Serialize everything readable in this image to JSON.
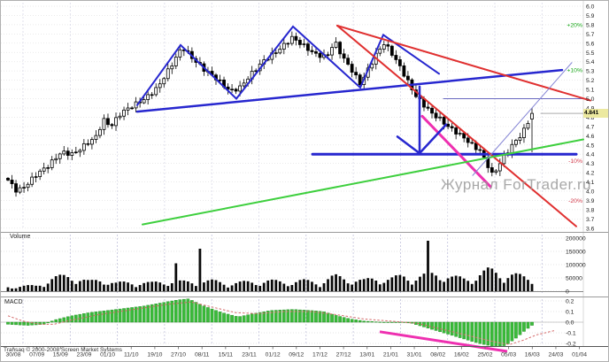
{
  "window": {
    "watermark": "Журнал ForTrader.ru",
    "copyright": "Transaq © 2000-2008 Screen Market Systems"
  },
  "price_panel": {
    "last_price": "4.841"
  },
  "volume_panel": {
    "label": "Volume"
  },
  "macd_panel": {
    "label": "MACD"
  },
  "chart_data": [
    {
      "type": "candlestick",
      "panel": "price",
      "ylim": [
        3.6,
        6.0
      ],
      "ytick_step": 0.1,
      "grid": true,
      "legend_position": "none",
      "x_dates": [
        "30/08",
        "07/09",
        "15/09",
        "23/09",
        "01/10",
        "11/10",
        "19/10",
        "27/10",
        "08/11",
        "15/11",
        "23/11",
        "01/12",
        "09/12",
        "17/12",
        "27/12",
        "13/01",
        "21/01",
        "31/01",
        "08/02",
        "16/02",
        "25/02",
        "05/03",
        "16/03",
        "24/03",
        "01/04"
      ],
      "last_price": 4.841,
      "last_candle": {
        "open": 4.78,
        "high": 4.9,
        "low": 4.42,
        "close": 4.841
      },
      "candles": {
        "start_x": 8,
        "step": 4.5191,
        "count": 132
      },
      "percent_labels": [
        {
          "text": "+20%",
          "price": 5.8,
          "color": "#18a818"
        },
        {
          "text": "+10%",
          "price": 5.31,
          "color": "#18a818"
        },
        {
          "text": "-10%",
          "price": 4.33,
          "color": "#d23a4a"
        },
        {
          "text": "-20%",
          "price": 3.9,
          "color": "#d23a4a"
        }
      ],
      "price_path": [
        [
          8,
          4.12
        ],
        [
          18,
          4.0
        ],
        [
          27,
          4.05
        ],
        [
          40,
          4.18
        ],
        [
          54,
          4.28
        ],
        [
          68,
          4.42
        ],
        [
          82,
          4.4
        ],
        [
          95,
          4.5
        ],
        [
          109,
          4.6
        ],
        [
          115,
          4.78
        ],
        [
          124,
          4.7
        ],
        [
          136,
          4.85
        ],
        [
          150,
          4.93
        ],
        [
          163,
          5.0
        ],
        [
          177,
          5.12
        ],
        [
          190,
          5.32
        ],
        [
          205,
          5.56
        ],
        [
          215,
          5.45
        ],
        [
          229,
          5.32
        ],
        [
          243,
          5.22
        ],
        [
          259,
          5.08
        ],
        [
          270,
          5.12
        ],
        [
          284,
          5.28
        ],
        [
          298,
          5.42
        ],
        [
          313,
          5.52
        ],
        [
          329,
          5.66
        ],
        [
          341,
          5.58
        ],
        [
          355,
          5.48
        ],
        [
          368,
          5.45
        ],
        [
          377,
          5.62
        ],
        [
          386,
          5.45
        ],
        [
          397,
          5.3
        ],
        [
          406,
          5.16
        ],
        [
          415,
          5.32
        ],
        [
          424,
          5.48
        ],
        [
          433,
          5.6
        ],
        [
          441,
          5.5
        ],
        [
          450,
          5.36
        ],
        [
          459,
          5.2
        ],
        [
          468,
          5.04
        ],
        [
          477,
          4.94
        ],
        [
          487,
          4.84
        ],
        [
          496,
          4.78
        ],
        [
          505,
          4.7
        ],
        [
          514,
          4.64
        ],
        [
          523,
          4.58
        ],
        [
          532,
          4.5
        ],
        [
          541,
          4.44
        ],
        [
          548,
          4.32
        ],
        [
          555,
          4.18
        ],
        [
          561,
          4.25
        ],
        [
          568,
          4.38
        ],
        [
          575,
          4.46
        ],
        [
          582,
          4.55
        ],
        [
          589,
          4.62
        ],
        [
          593,
          4.7
        ],
        [
          597,
          4.78
        ],
        [
          600,
          4.841
        ]
      ],
      "drawings": [
        {
          "name": "triangle-zigzag",
          "color": "#2727cf",
          "width": 2,
          "points_xp": [
            [
              154,
              4.93
            ],
            [
              203,
              5.58
            ],
            [
              266,
              5.0
            ],
            [
              330,
              5.78
            ],
            [
              406,
              5.12
            ],
            [
              432,
              5.69
            ],
            [
              495,
              5.27
            ]
          ]
        },
        {
          "name": "rising-support-trendline",
          "color": "#2727cf",
          "width": 2.5,
          "points_xp": [
            [
              154,
              4.86
            ],
            [
              634,
              5.31
            ]
          ]
        },
        {
          "name": "horizontal-support-4-4",
          "color": "#2727cf",
          "width": 3,
          "points_xp": [
            [
              352,
              4.4
            ],
            [
              650,
              4.4
            ]
          ]
        },
        {
          "name": "resistance-level-5-0",
          "color": "#6a6ac0",
          "width": 1,
          "points_xp": [
            [
              500,
              5.0
            ],
            [
              658,
              5.0
            ]
          ]
        },
        {
          "name": "red-steep-downtrend",
          "color": "#e03030",
          "width": 2,
          "points_xp": [
            [
              380,
              5.79
            ],
            [
              650,
              3.62
            ]
          ]
        },
        {
          "name": "red-downtrend",
          "color": "#e03030",
          "width": 2,
          "points_xp": [
            [
              380,
              5.79
            ],
            [
              666,
              4.98
            ]
          ]
        },
        {
          "name": "magenta-trendline",
          "color": "#ee30b0",
          "width": 3,
          "points_xp": [
            [
              476,
              4.81
            ],
            [
              553,
              4.05
            ]
          ]
        },
        {
          "name": "green-uptrend-line",
          "color": "#3ecf3e",
          "width": 2,
          "points_xp": [
            [
              160,
              3.64
            ],
            [
              658,
              4.56
            ]
          ]
        },
        {
          "name": "recovery-trendline",
          "color": "#8585d5",
          "width": 1,
          "points_xp": [
            [
              533,
              4.17
            ],
            [
              645,
              5.39
            ]
          ]
        },
        {
          "name": "last-price-line",
          "color": "#aaaaaa",
          "width": 1,
          "points_xp": [
            [
              610,
              4.841
            ],
            [
              688,
              4.841
            ]
          ]
        },
        {
          "name": "down-arrow-shaft",
          "color": "#2727cf",
          "width": 2.5,
          "points_xp": [
            [
              473,
              5.13
            ],
            [
              473,
              4.43
            ]
          ]
        },
        {
          "name": "down-arrow-head",
          "color": "#2727cf",
          "width": 2.5,
          "points_xp": [
            [
              448,
              4.59
            ],
            [
              473,
              4.41
            ],
            [
              503,
              4.72
            ]
          ]
        }
      ]
    },
    {
      "type": "bar",
      "panel": "volume",
      "ylabel": "Volume",
      "ylim": [
        0,
        200000
      ],
      "yticks": [
        0,
        50000,
        100000,
        150000,
        200000
      ],
      "volume_path": [
        [
          8,
          15000
        ],
        [
          40,
          18000
        ],
        [
          58,
          42000
        ],
        [
          80,
          52000
        ],
        [
          100,
          30000
        ],
        [
          115,
          40000
        ],
        [
          130,
          26000
        ],
        [
          150,
          30000
        ],
        [
          170,
          26000
        ],
        [
          185,
          34000
        ],
        [
          205,
          30000
        ],
        [
          240,
          33000
        ],
        [
          260,
          26000
        ],
        [
          280,
          30000
        ],
        [
          300,
          34000
        ],
        [
          320,
          30000
        ],
        [
          340,
          34000
        ],
        [
          360,
          30000
        ],
        [
          377,
          48000
        ],
        [
          395,
          40000
        ],
        [
          410,
          34000
        ],
        [
          425,
          44000
        ],
        [
          440,
          40000
        ],
        [
          455,
          50000
        ],
        [
          470,
          46000
        ],
        [
          495,
          60000
        ],
        [
          510,
          45000
        ],
        [
          525,
          40000
        ],
        [
          540,
          55000
        ],
        [
          552,
          68000
        ],
        [
          565,
          60000
        ],
        [
          578,
          54000
        ],
        [
          590,
          46000
        ],
        [
          600,
          40000
        ]
      ],
      "volume_spikes": [
        [
          196,
          105000
        ],
        [
          223,
          160000
        ],
        [
          484,
          190000
        ]
      ]
    },
    {
      "type": "histogram-line",
      "panel": "macd",
      "ylabel": "MACD",
      "ylim": [
        -0.25,
        0.25
      ],
      "yticks": [
        0.2,
        0.1,
        0.0,
        -0.1,
        -0.2
      ],
      "histogram_path": [
        [
          8,
          -0.02
        ],
        [
          30,
          -0.03
        ],
        [
          50,
          -0.02
        ],
        [
          60,
          0.02
        ],
        [
          80,
          0.06
        ],
        [
          100,
          0.09
        ],
        [
          120,
          0.11
        ],
        [
          140,
          0.13
        ],
        [
          160,
          0.15
        ],
        [
          180,
          0.18
        ],
        [
          200,
          0.21
        ],
        [
          212,
          0.22
        ],
        [
          230,
          0.15
        ],
        [
          250,
          0.09
        ],
        [
          268,
          0.05
        ],
        [
          285,
          0.08
        ],
        [
          305,
          0.11
        ],
        [
          330,
          0.12
        ],
        [
          350,
          0.11
        ],
        [
          364,
          0.1
        ],
        [
          380,
          0.06
        ],
        [
          395,
          0.03
        ],
        [
          411,
          0.01
        ],
        [
          430,
          0.0
        ],
        [
          450,
          0.0
        ],
        [
          464,
          -0.01
        ],
        [
          480,
          -0.05
        ],
        [
          500,
          -0.1
        ],
        [
          520,
          -0.15
        ],
        [
          540,
          -0.2
        ],
        [
          558,
          -0.23
        ],
        [
          570,
          -0.22
        ],
        [
          582,
          -0.15
        ],
        [
          592,
          -0.08
        ],
        [
          600,
          -0.03
        ]
      ],
      "signal_path": [
        [
          8,
          0.06
        ],
        [
          25,
          0.01
        ],
        [
          45,
          -0.02
        ],
        [
          60,
          -0.02
        ],
        [
          80,
          0.02
        ],
        [
          110,
          0.07
        ],
        [
          150,
          0.12
        ],
        [
          190,
          0.17
        ],
        [
          215,
          0.19
        ],
        [
          240,
          0.14
        ],
        [
          265,
          0.09
        ],
        [
          290,
          0.08
        ],
        [
          320,
          0.1
        ],
        [
          350,
          0.1
        ],
        [
          380,
          0.07
        ],
        [
          410,
          0.03
        ],
        [
          440,
          0.01
        ],
        [
          470,
          -0.01
        ],
        [
          500,
          -0.07
        ],
        [
          530,
          -0.13
        ],
        [
          560,
          -0.19
        ],
        [
          575,
          -0.21
        ],
        [
          590,
          -0.17
        ],
        [
          605,
          -0.12
        ],
        [
          625,
          -0.08
        ]
      ],
      "drawings": [
        {
          "name": "macd-magenta-trendline",
          "color": "#ee30b0",
          "width": 3,
          "points_xv": [
            [
              428,
              -0.09
            ],
            [
              572,
              -0.275
            ]
          ]
        }
      ]
    }
  ]
}
